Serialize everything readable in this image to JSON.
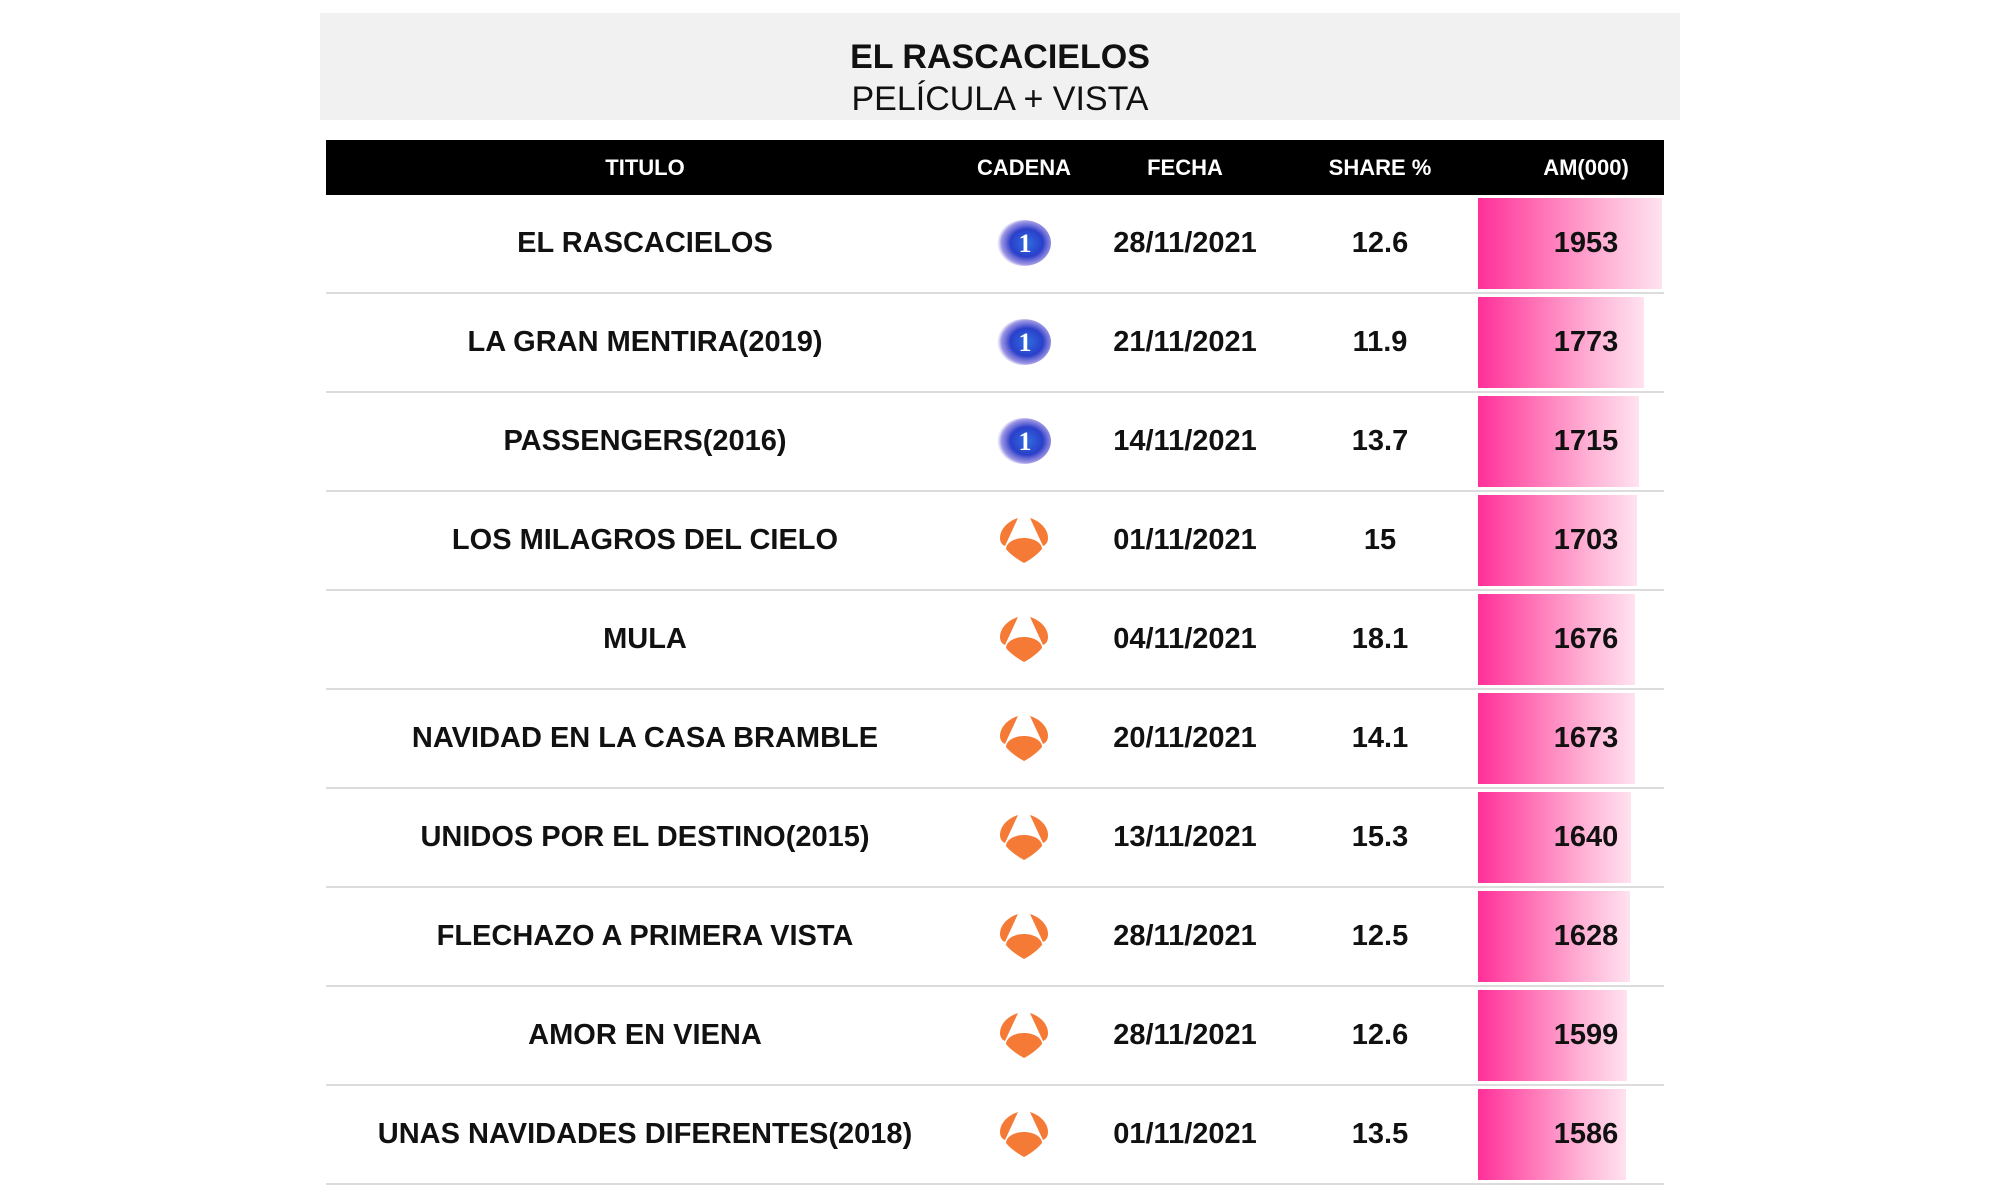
{
  "header": {
    "title": "EL RASCACIELOS",
    "subtitle": "PELÍCULA + VISTA"
  },
  "table": {
    "columns": [
      "TITULO",
      "CADENA",
      "FECHA",
      "SHARE %",
      "AM(000)"
    ],
    "rows": [
      {
        "titulo": "EL RASCACIELOS",
        "cadena": "La 1",
        "cadena_icon": "la1-logo-icon",
        "fecha": "28/11/2021",
        "share": "12.6",
        "am": "1953"
      },
      {
        "titulo": "LA GRAN MENTIRA(2019)",
        "cadena": "La 1",
        "cadena_icon": "la1-logo-icon",
        "fecha": "21/11/2021",
        "share": "11.9",
        "am": "1773"
      },
      {
        "titulo": "PASSENGERS(2016)",
        "cadena": "La 1",
        "cadena_icon": "la1-logo-icon",
        "fecha": "14/11/2021",
        "share": "13.7",
        "am": "1715"
      },
      {
        "titulo": "LOS MILAGROS DEL CIELO",
        "cadena": "Antena 3",
        "cadena_icon": "antena3-logo-icon",
        "fecha": "01/11/2021",
        "share": "15",
        "am": "1703"
      },
      {
        "titulo": "MULA",
        "cadena": "Antena 3",
        "cadena_icon": "antena3-logo-icon",
        "fecha": "04/11/2021",
        "share": "18.1",
        "am": "1676"
      },
      {
        "titulo": "NAVIDAD EN LA CASA BRAMBLE",
        "cadena": "Antena 3",
        "cadena_icon": "antena3-logo-icon",
        "fecha": "20/11/2021",
        "share": "14.1",
        "am": "1673"
      },
      {
        "titulo": "UNIDOS POR EL DESTINO(2015)",
        "cadena": "Antena 3",
        "cadena_icon": "antena3-logo-icon",
        "fecha": "13/11/2021",
        "share": "15.3",
        "am": "1640"
      },
      {
        "titulo": "FLECHAZO A PRIMERA VISTA",
        "cadena": "Antena 3",
        "cadena_icon": "antena3-logo-icon",
        "fecha": "28/11/2021",
        "share": "12.5",
        "am": "1628"
      },
      {
        "titulo": "AMOR EN VIENA",
        "cadena": "Antena 3",
        "cadena_icon": "antena3-logo-icon",
        "fecha": "28/11/2021",
        "share": "12.6",
        "am": "1599"
      },
      {
        "titulo": "UNAS NAVIDADES DIFERENTES(2018)",
        "cadena": "Antena 3",
        "cadena_icon": "antena3-logo-icon",
        "fecha": "01/11/2021",
        "share": "13.5",
        "am": "1586"
      }
    ]
  },
  "colors": {
    "header_bg": "#000000",
    "title_box_bg": "#f1f1f1",
    "bar_start": "#ff2f99",
    "bar_end": "#ffe2ef",
    "la1_blue": "#2a3fc9",
    "antena3_orange": "#f47a36"
  },
  "chart_data": {
    "type": "table",
    "title": "EL RASCACIELOS",
    "subtitle": "PELÍCULA + VISTA",
    "columns": [
      "TITULO",
      "CADENA",
      "FECHA",
      "SHARE %",
      "AM(000)"
    ],
    "categories": [
      "EL RASCACIELOS",
      "LA GRAN MENTIRA(2019)",
      "PASSENGERS(2016)",
      "LOS MILAGROS DEL CIELO",
      "MULA",
      "NAVIDAD EN LA CASA BRAMBLE",
      "UNIDOS POR EL DESTINO(2015)",
      "FLECHAZO A PRIMERA VISTA",
      "AMOR EN VIENA",
      "UNAS NAVIDADES DIFERENTES(2018)"
    ],
    "series": [
      {
        "name": "CADENA",
        "values": [
          "La 1",
          "La 1",
          "La 1",
          "Antena 3",
          "Antena 3",
          "Antena 3",
          "Antena 3",
          "Antena 3",
          "Antena 3",
          "Antena 3"
        ]
      },
      {
        "name": "FECHA",
        "values": [
          "28/11/2021",
          "21/11/2021",
          "14/11/2021",
          "01/11/2021",
          "04/11/2021",
          "20/11/2021",
          "13/11/2021",
          "28/11/2021",
          "28/11/2021",
          "01/11/2021"
        ]
      },
      {
        "name": "SHARE %",
        "values": [
          12.6,
          11.9,
          13.7,
          15,
          18.1,
          14.1,
          15.3,
          12.5,
          12.6,
          13.5
        ]
      },
      {
        "name": "AM(000)",
        "values": [
          1953,
          1773,
          1715,
          1703,
          1676,
          1673,
          1640,
          1628,
          1599,
          1586
        ]
      }
    ]
  }
}
